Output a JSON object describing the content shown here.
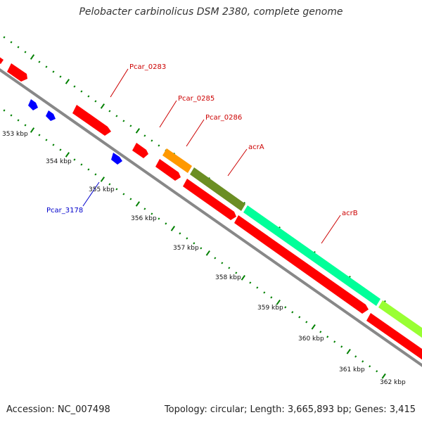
{
  "title": "Pelobacter carbinolicus DSM 2380, complete genome",
  "footer": {
    "accession": "Accession: NC_007498",
    "summary": "Topology: circular; Length: 3,665,893 bp; Genes: 3,415"
  },
  "colors": {
    "backbone": "#888888",
    "ticks": "#008000",
    "forward_gene": "#ff0000",
    "reverse_gene": "#0000ff",
    "acrA": "#6b8e23",
    "acrB": "#00ff99",
    "acrB_next": "#99ff33",
    "Pcar_0286": "#ff9900",
    "forward_label": "#cc0000",
    "reverse_label": "#0000cc"
  },
  "tick_labels": [
    "353 kbp",
    "354 kbp",
    "355 kbp",
    "356 kbp",
    "357 kbp",
    "358 kbp",
    "359 kbp",
    "360 kbp",
    "361 kbp",
    "362 kbp"
  ],
  "gene_labels": [
    {
      "id": "Pcar_0283",
      "text": "Pcar_0283",
      "strand": "forward"
    },
    {
      "id": "Pcar_0285",
      "text": "Pcar_0285",
      "strand": "forward"
    },
    {
      "id": "Pcar_0286",
      "text": "Pcar_0286",
      "strand": "forward"
    },
    {
      "id": "acrA",
      "text": "acrA",
      "strand": "forward"
    },
    {
      "id": "acrB",
      "text": "acrB",
      "strand": "forward"
    },
    {
      "id": "Pcar_3178",
      "text": "Pcar_3178",
      "strand": "reverse"
    }
  ]
}
